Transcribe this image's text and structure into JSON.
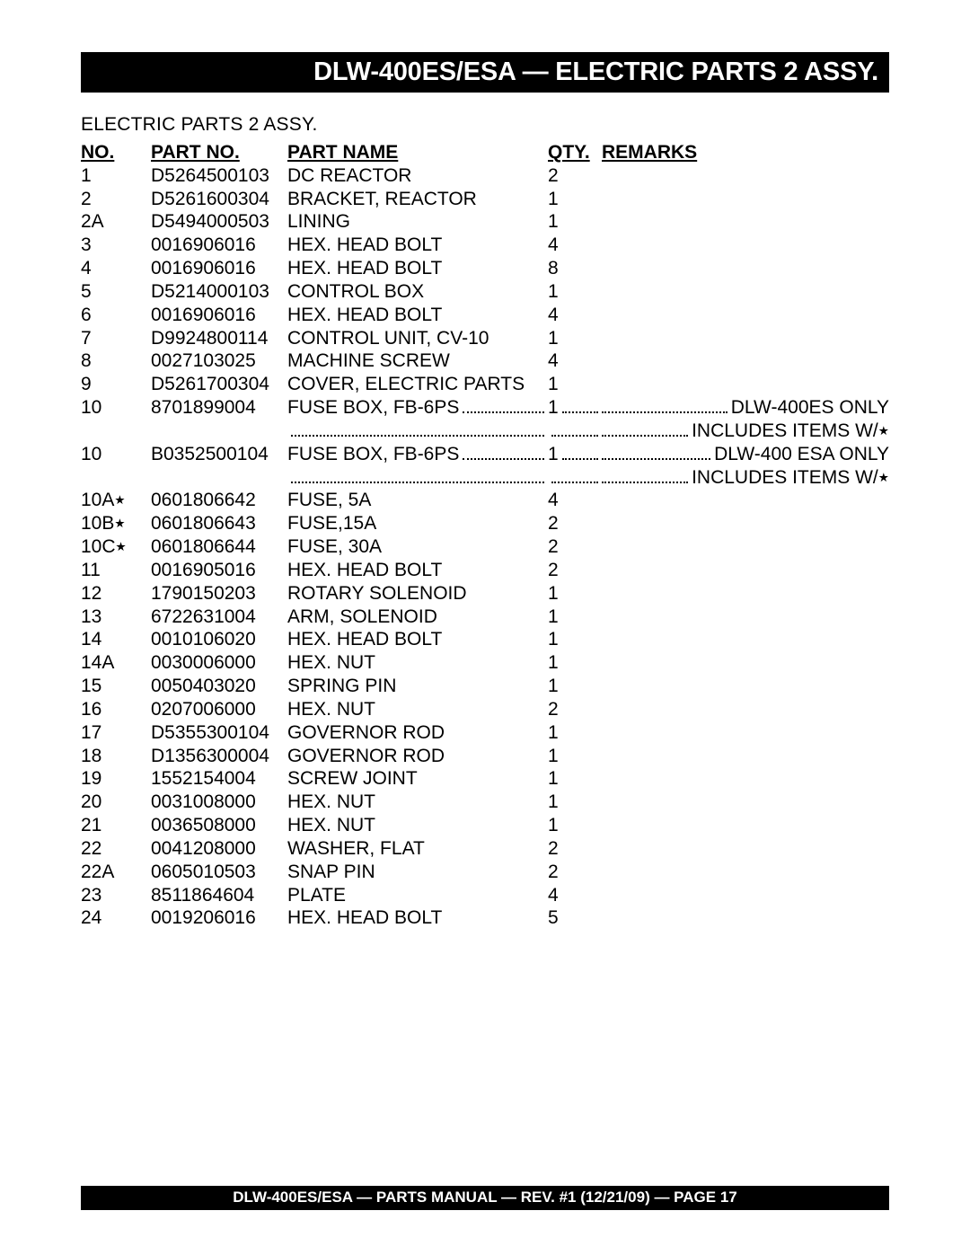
{
  "title": "DLW-400ES/ESA — ELECTRIC PARTS 2 ASSY.",
  "section_heading": "ELECTRIC PARTS 2 ASSY.",
  "footer": "DLW-400ES/ESA —  PARTS MANUAL — REV. #1  (12/21/09) — PAGE 17",
  "columns": {
    "no": "NO.",
    "part_no": "PART NO.",
    "part_name": "PART NAME",
    "qty": "QTY.",
    "remarks": "REMARKS"
  },
  "rows": [
    {
      "no": "1",
      "part": "D5264500103",
      "name": "DC REACTOR",
      "qty": "2"
    },
    {
      "no": "2",
      "part": "D5261600304",
      "name": "BRACKET, REACTOR",
      "qty": "1"
    },
    {
      "no": "2A",
      "part": "D5494000503",
      "name": "LINING",
      "qty": "1"
    },
    {
      "no": "3",
      "part": "0016906016",
      "name": "HEX. HEAD BOLT",
      "qty": "4"
    },
    {
      "no": "4",
      "part": "0016906016",
      "name": "HEX. HEAD BOLT",
      "qty": "8"
    },
    {
      "no": "5",
      "part": "D5214000103",
      "name": "CONTROL BOX",
      "qty": "1"
    },
    {
      "no": "6",
      "part": "0016906016",
      "name": "HEX. HEAD BOLT",
      "qty": "4"
    },
    {
      "no": "7",
      "part": "D9924800114",
      "name": "CONTROL UNIT, CV-10",
      "qty": "1"
    },
    {
      "no": "8",
      "part": "0027103025",
      "name": "MACHINE SCREW",
      "qty": "4"
    },
    {
      "no": "9",
      "part": "D5261700304",
      "name": "COVER, ELECTRIC PARTS",
      "qty": "1"
    },
    {
      "no": "10",
      "part": "8701899004",
      "name": "FUSE BOX, FB-6PS",
      "qty": "1",
      "remarks": "DLW-400ES ONLY",
      "leader": true,
      "sub_remarks": "INCLUDES  ITEMS W/",
      "sub_star": true
    },
    {
      "no": "10",
      "part": "B0352500104",
      "name": "FUSE BOX, FB-6PS",
      "qty": "1",
      "remarks": "DLW-400 ESA ONLY",
      "leader": true,
      "sub_remarks": "INCLUDES  ITEMS W/",
      "sub_star": true
    },
    {
      "no": "10A",
      "star": true,
      "part": "0601806642",
      "name": "FUSE, 5A",
      "qty": "4"
    },
    {
      "no": "10B",
      "star": true,
      "part": "0601806643",
      "name": "FUSE,15A",
      "qty": "2"
    },
    {
      "no": "10C",
      "star": true,
      "part": "0601806644",
      "name": "FUSE, 30A",
      "qty": "2"
    },
    {
      "no": "11",
      "part": "0016905016",
      "name": "HEX. HEAD BOLT",
      "qty": "2"
    },
    {
      "no": "12",
      "part": "1790150203",
      "name": "ROTARY SOLENOID",
      "qty": "1"
    },
    {
      "no": "13",
      "part": "6722631004",
      "name": "ARM, SOLENOID",
      "qty": "1"
    },
    {
      "no": "14",
      "part": "0010106020",
      "name": "HEX. HEAD BOLT",
      "qty": "1"
    },
    {
      "no": "14A",
      "part": "0030006000",
      "name": "HEX. NUT",
      "qty": "1"
    },
    {
      "no": "15",
      "part": "0050403020",
      "name": "SPRING PIN",
      "qty": "1"
    },
    {
      "no": "16",
      "part": "0207006000",
      "name": "HEX. NUT",
      "qty": "2"
    },
    {
      "no": "17",
      "part": "D5355300104",
      "name": "GOVERNOR ROD",
      "qty": "1"
    },
    {
      "no": "18",
      "part": "D1356300004",
      "name": "GOVERNOR ROD",
      "qty": "1"
    },
    {
      "no": "19",
      "part": "1552154004",
      "name": "SCREW JOINT",
      "qty": "1"
    },
    {
      "no": "20",
      "part": "0031008000",
      "name": "HEX. NUT",
      "qty": "1"
    },
    {
      "no": "21",
      "part": "0036508000",
      "name": "HEX. NUT",
      "qty": "1"
    },
    {
      "no": "22",
      "part": "0041208000",
      "name": "WASHER, FLAT",
      "qty": "2"
    },
    {
      "no": "22A",
      "part": "0605010503",
      "name": "SNAP PIN",
      "qty": "2"
    },
    {
      "no": "23",
      "part": "8511864604",
      "name": "PLATE",
      "qty": "4"
    },
    {
      "no": "24",
      "part": "0019206016",
      "name": "HEX. HEAD BOLT",
      "qty": "5"
    }
  ]
}
